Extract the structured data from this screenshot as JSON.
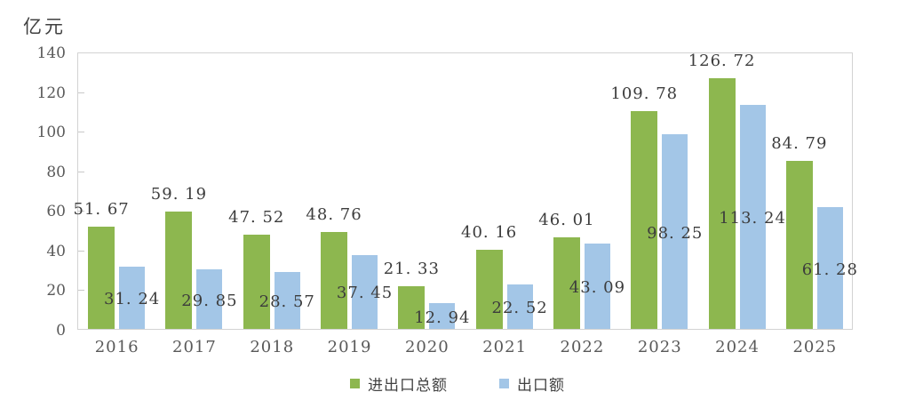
{
  "unit_label": "亿元",
  "colors": {
    "total_bar": "#8db74f",
    "export_bar": "#a3c6e7",
    "plot_border": "#d3d3d3",
    "tick_text": "#595959",
    "label_text": "#3c3c3c"
  },
  "chart_data": {
    "type": "bar",
    "title": "",
    "xlabel": "",
    "ylabel": "亿元",
    "ylim": [
      0,
      140
    ],
    "yticks": [
      0,
      20,
      40,
      60,
      80,
      100,
      120,
      140
    ],
    "grid": false,
    "legend_position": "bottom",
    "categories": [
      "2016",
      "2017",
      "2018",
      "2019",
      "2020",
      "2021",
      "2022",
      "2023",
      "2024",
      "2025"
    ],
    "series": [
      {
        "name": "进出口总额",
        "color": "#8db74f",
        "values": [
          51.67,
          59.19,
          47.52,
          48.76,
          21.33,
          40.16,
          46.01,
          109.78,
          126.72,
          84.79
        ]
      },
      {
        "name": "出口额",
        "color": "#a3c6e7",
        "values": [
          31.24,
          29.85,
          28.57,
          37.45,
          12.94,
          22.52,
          43.09,
          98.25,
          113.24,
          61.28
        ]
      }
    ]
  }
}
